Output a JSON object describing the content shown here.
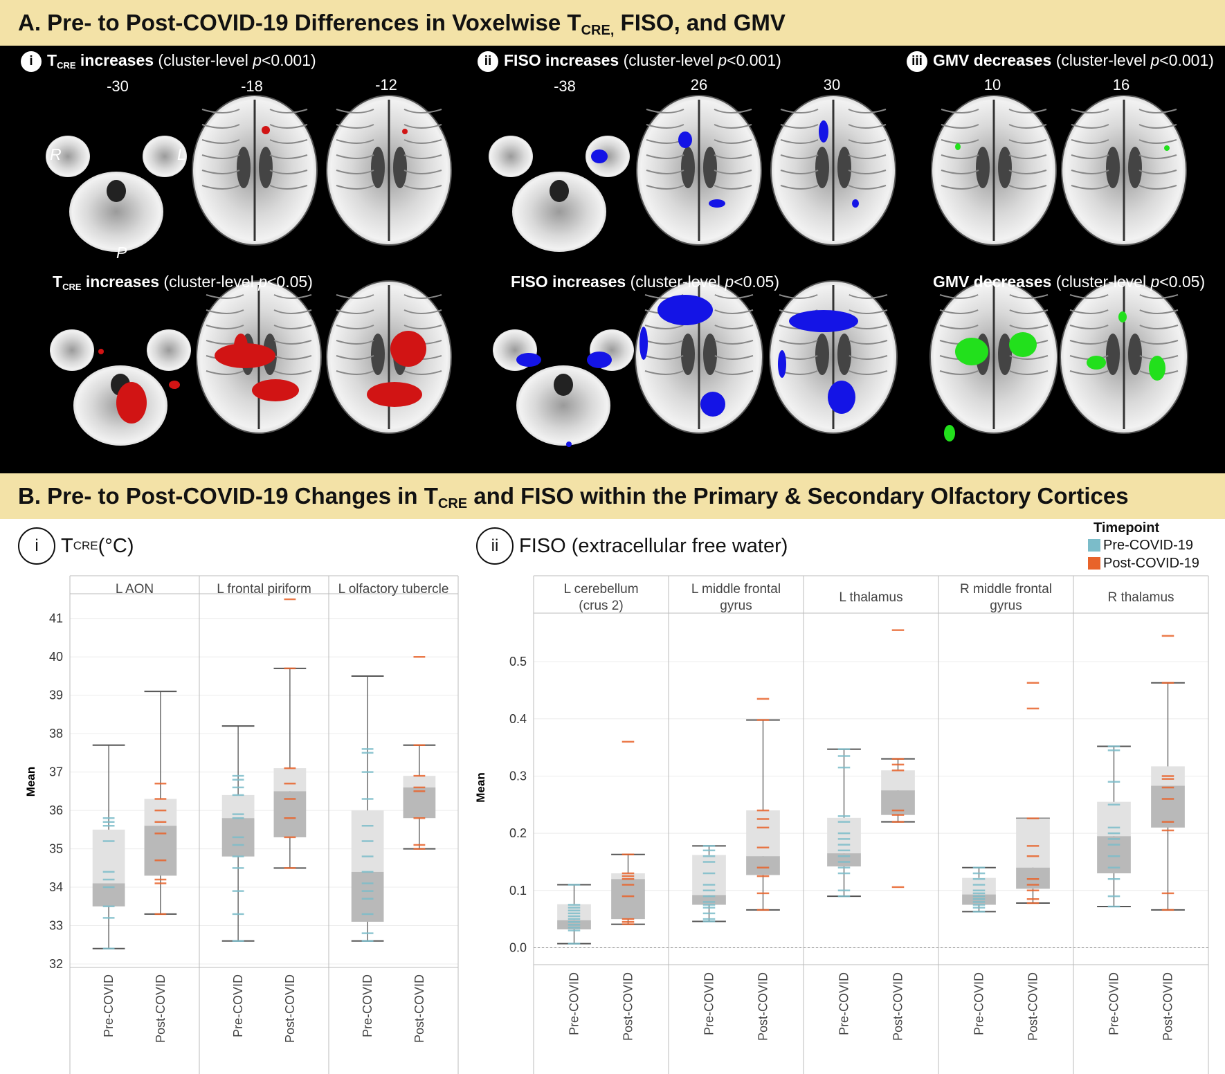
{
  "section_a": {
    "title_pre": "A. Pre- to Post-COVID-19 Differences in Voxelwise T",
    "title_sub": "CRE,",
    "title_post": " FISO, and GMV",
    "panels": [
      {
        "roman": "i",
        "label_main": "T",
        "label_sub": "CRE",
        "label_bold": " increases",
        "label_rest": " (cluster-level ",
        "p": "p",
        "thresh": "<0.001)",
        "slices": [
          "-30",
          "-18",
          "-12"
        ]
      },
      {
        "roman": "ii",
        "label_bold": "FISO increases",
        "label_rest": " (cluster-level ",
        "p": "p",
        "thresh": "<0.001)",
        "slices": [
          "-38",
          "26",
          "30"
        ]
      },
      {
        "roman": "iii",
        "label_bold": "GMV decreases",
        "label_rest": " (cluster-level ",
        "p": "p",
        "thresh": "<0.001)",
        "slices": [
          "10",
          "16"
        ]
      }
    ],
    "lower_panels": [
      {
        "label_main": "T",
        "label_sub": "CRE",
        "label_bold": " increases",
        "label_rest": " (cluster-level ",
        "p": "p",
        "thresh": "<0.05)"
      },
      {
        "label_bold": "FISO increases",
        "label_rest": " (cluster-level ",
        "p": "p",
        "thresh": "<0.05)"
      },
      {
        "label_bold": "GMV decreases",
        "label_rest": " (cluster-level ",
        "p": "p",
        "thresh": "<0.05)"
      }
    ],
    "orientation": {
      "right": "R",
      "left": "L",
      "posterior": "P"
    },
    "colors": {
      "tcre": "#d11414",
      "fiso": "#1414e6",
      "gmv": "#22e01c"
    }
  },
  "section_b": {
    "title_pre": "B. Pre- to Post-COVID-19 Changes in T",
    "title_sub": "CRE",
    "title_post": " and FISO within the Primary & Secondary Olfactory Cortices",
    "sub_i": {
      "roman": "i",
      "main": "T",
      "sub": "CRE",
      "rest": " (°C)"
    },
    "sub_ii": {
      "roman": "ii",
      "text": "FISO (extracellular free water)"
    },
    "legend": {
      "title": "Timepoint",
      "items": [
        {
          "label": "Pre-COVID-19",
          "color": "#7bbcc9"
        },
        {
          "label": "Post-COVID-19",
          "color": "#e8632a"
        }
      ]
    }
  },
  "chart_data": [
    {
      "type": "box",
      "ylabel": "Mean",
      "ylim": [
        32,
        41.5
      ],
      "yticks": [
        32,
        33,
        34,
        35,
        36,
        37,
        38,
        39,
        40,
        41
      ],
      "categories": [
        "Pre-COVID",
        "Post-COVID"
      ],
      "facets": [
        {
          "name": "L AON",
          "pre": {
            "min": 32.4,
            "q1": 33.5,
            "median": 34.1,
            "q3": 35.5,
            "max": 37.7,
            "points": [
              32.4,
              33.2,
              33.5,
              34.0,
              34.2,
              34.4,
              35.2,
              35.6,
              35.7,
              35.8
            ]
          },
          "post": {
            "min": 33.3,
            "q1": 34.3,
            "median": 35.6,
            "q3": 36.3,
            "max": 39.1,
            "points": [
              33.3,
              34.1,
              34.2,
              34.7,
              35.4,
              35.7,
              36.0,
              36.3,
              36.7
            ]
          }
        },
        {
          "name": "L frontal piriform",
          "pre": {
            "min": 32.6,
            "q1": 34.8,
            "median": 35.8,
            "q3": 36.4,
            "max": 38.2,
            "points": [
              32.6,
              33.3,
              33.9,
              34.5,
              34.8,
              35.1,
              35.3,
              35.8,
              35.9,
              36.4,
              36.6,
              36.8,
              36.9
            ]
          },
          "post": {
            "min": 34.5,
            "q1": 35.3,
            "median": 36.5,
            "q3": 37.1,
            "max": 39.7,
            "points": [
              34.5,
              35.3,
              35.8,
              36.3,
              36.7,
              37.1,
              39.7,
              41.5
            ]
          }
        },
        {
          "name": "L olfactory tubercle",
          "pre": {
            "min": 32.6,
            "q1": 33.1,
            "median": 34.4,
            "q3": 36.0,
            "max": 39.5,
            "points": [
              32.6,
              32.8,
              33.3,
              33.7,
              33.9,
              34.1,
              34.4,
              34.8,
              35.2,
              35.6,
              36.3,
              37.0,
              37.5,
              37.6
            ]
          },
          "post": {
            "min": 35.0,
            "q1": 35.8,
            "median": 36.6,
            "q3": 36.9,
            "max": 37.7,
            "points": [
              35.0,
              35.1,
              35.8,
              36.5,
              36.6,
              36.9,
              37.7,
              40.0
            ]
          }
        }
      ]
    },
    {
      "type": "box",
      "ylabel": "Mean",
      "ylim": [
        -0.02,
        0.58
      ],
      "yticks": [
        0.0,
        0.1,
        0.2,
        0.3,
        0.4,
        0.5
      ],
      "categories": [
        "Pre-COVID",
        "Post-COVID"
      ],
      "facets": [
        {
          "name": "L cerebellum (crus 2)",
          "pre": {
            "min": 0.007,
            "q1": 0.032,
            "median": 0.048,
            "q3": 0.076,
            "max": 0.11,
            "points": [
              0.007,
              0.03,
              0.035,
              0.04,
              0.045,
              0.05,
              0.055,
              0.06,
              0.065,
              0.07,
              0.075,
              0.11
            ]
          },
          "post": {
            "min": 0.041,
            "q1": 0.05,
            "median": 0.12,
            "q3": 0.13,
            "max": 0.163,
            "points": [
              0.041,
              0.045,
              0.05,
              0.09,
              0.11,
              0.12,
              0.125,
              0.13,
              0.163,
              0.36
            ]
          }
        },
        {
          "name": "L middle frontal gyrus",
          "pre": {
            "min": 0.046,
            "q1": 0.075,
            "median": 0.092,
            "q3": 0.162,
            "max": 0.178,
            "points": [
              0.046,
              0.05,
              0.06,
              0.07,
              0.075,
              0.08,
              0.09,
              0.1,
              0.11,
              0.13,
              0.15,
              0.16,
              0.17,
              0.178
            ]
          },
          "post": {
            "min": 0.066,
            "q1": 0.127,
            "median": 0.16,
            "q3": 0.24,
            "max": 0.398,
            "points": [
              0.066,
              0.095,
              0.125,
              0.14,
              0.175,
              0.21,
              0.225,
              0.24,
              0.398,
              0.435
            ]
          }
        },
        {
          "name": "L thalamus",
          "pre": {
            "min": 0.09,
            "q1": 0.142,
            "median": 0.165,
            "q3": 0.227,
            "max": 0.347,
            "points": [
              0.09,
              0.1,
              0.13,
              0.14,
              0.15,
              0.16,
              0.17,
              0.18,
              0.19,
              0.2,
              0.22,
              0.23,
              0.315,
              0.335,
              0.347
            ]
          },
          "post": {
            "min": 0.22,
            "q1": 0.232,
            "median": 0.275,
            "q3": 0.31,
            "max": 0.33,
            "points": [
              0.106,
              0.22,
              0.232,
              0.24,
              0.31,
              0.32,
              0.33,
              0.555
            ]
          }
        },
        {
          "name": "R middle frontal gyrus",
          "pre": {
            "min": 0.063,
            "q1": 0.075,
            "median": 0.093,
            "q3": 0.122,
            "max": 0.14,
            "points": [
              0.063,
              0.07,
              0.075,
              0.08,
              0.085,
              0.09,
              0.095,
              0.1,
              0.11,
              0.12,
              0.13,
              0.14
            ]
          },
          "post": {
            "min": 0.078,
            "q1": 0.103,
            "median": 0.14,
            "q3": 0.226,
            "max": 0.226,
            "points": [
              0.078,
              0.085,
              0.1,
              0.11,
              0.12,
              0.16,
              0.178,
              0.226,
              0.418,
              0.463
            ]
          }
        },
        {
          "name": "R thalamus",
          "pre": {
            "min": 0.072,
            "q1": 0.13,
            "median": 0.195,
            "q3": 0.255,
            "max": 0.352,
            "points": [
              0.072,
              0.09,
              0.12,
              0.14,
              0.16,
              0.18,
              0.19,
              0.2,
              0.21,
              0.25,
              0.29,
              0.345,
              0.352
            ]
          },
          "post": {
            "min": 0.066,
            "q1": 0.21,
            "median": 0.283,
            "q3": 0.317,
            "max": 0.463,
            "points": [
              0.066,
              0.095,
              0.205,
              0.22,
              0.26,
              0.28,
              0.295,
              0.3,
              0.463,
              0.545
            ]
          }
        }
      ]
    }
  ]
}
